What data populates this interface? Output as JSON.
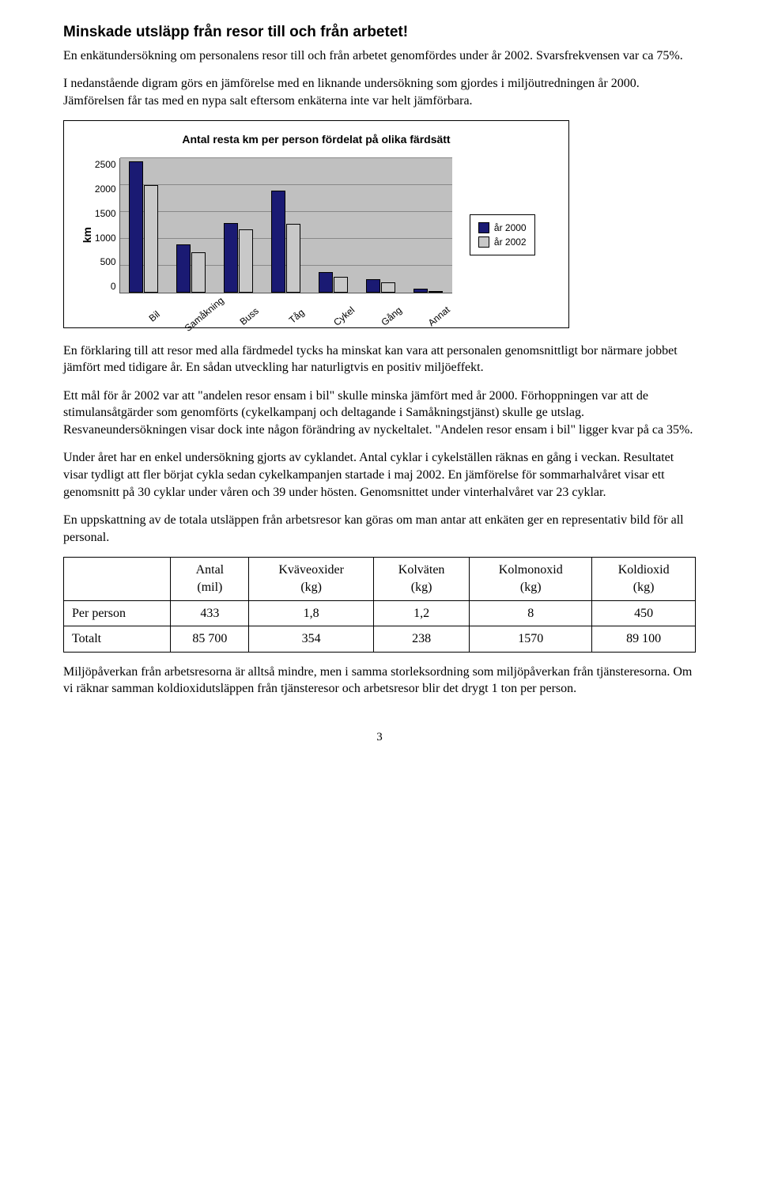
{
  "section_title": "Minskade utsläpp från resor till och från arbetet!",
  "intro_p1": "En enkätundersökning om personalens resor till och från arbetet genomfördes under år 2002. Svarsfrekvensen var ca 75%.",
  "intro_p2": "I nedanstående digram görs en jämförelse med en liknande undersökning som gjordes i miljöutredningen år 2000. Jämförelsen får tas med en nypa salt eftersom enkäterna inte var helt jämförbara.",
  "chart": {
    "type": "bar",
    "title": "Antal resta km per person fördelat på olika färdsätt",
    "ylabel": "km",
    "ylim": [
      0,
      2500
    ],
    "ytick_step": 500,
    "yticks": [
      "2500",
      "2000",
      "1500",
      "1000",
      "500",
      "0"
    ],
    "categories": [
      "Bil",
      "Samåkning",
      "Buss",
      "Tåg",
      "Cykel",
      "Gång",
      "Annat"
    ],
    "series": [
      {
        "name": "år 2000",
        "color": "#1a1a73",
        "values": [
          2450,
          900,
          1300,
          1900,
          380,
          260,
          80
        ]
      },
      {
        "name": "år 2002",
        "color": "#c8c8c8",
        "values": [
          2000,
          750,
          1180,
          1280,
          300,
          200,
          40
        ]
      }
    ],
    "plot_bg": "#c0c0c0",
    "grid_color": "#888888",
    "frame_border": "#000000",
    "title_fontsize": 14,
    "tick_fontsize": 12,
    "label_fontsize": 14
  },
  "body_p1": "En förklaring till att resor med alla färdmedel tycks ha minskat kan vara att personalen genomsnittligt bor närmare jobbet jämfört med tidigare år. En sådan utveckling har naturligtvis en positiv miljöeffekt.",
  "body_p2": "Ett mål för år 2002 var att \"andelen resor ensam i bil\" skulle minska jämfört med år 2000. Förhoppningen var att de stimulansåtgärder som genomförts (cykelkampanj och deltagande i Samåkningstjänst) skulle ge utslag. Resvaneundersökningen visar dock inte någon förändring av nyckeltalet. \"Andelen resor ensam i bil\" ligger kvar på ca 35%.",
  "body_p3": "Under året har en enkel undersökning gjorts av cyklandet. Antal cyklar i cykelställen räknas en gång i veckan. Resultatet visar tydligt att fler börjat cykla sedan cykelkampanjen startade i maj 2002. En jämförelse för sommarhalvåret visar ett genomsnitt på 30 cyklar under våren och 39 under hösten. Genomsnittet under vinterhalvåret var 23 cyklar.",
  "body_p4": "En uppskattning av de totala utsläppen från arbetsresor kan göras om man antar att enkäten ger en representativ bild för all personal.",
  "table": {
    "columns": [
      "",
      "Antal (mil)",
      "Kväveoxider (kg)",
      "Kolväten (kg)",
      "Kolmonoxid (kg)",
      "Koldioxid (kg)"
    ],
    "rows": [
      [
        "Per person",
        "433",
        "1,8",
        "1,2",
        "8",
        "450"
      ],
      [
        "Totalt",
        "85 700",
        "354",
        "238",
        "1570",
        "89 100"
      ]
    ]
  },
  "body_p5": "Miljöpåverkan från arbetsresorna är alltså mindre, men i samma storleksordning som miljöpåverkan från tjänsteresorna. Om vi räknar samman koldioxidutsläppen från tjänsteresor och arbetsresor blir det drygt 1 ton per person.",
  "page_number": "3"
}
